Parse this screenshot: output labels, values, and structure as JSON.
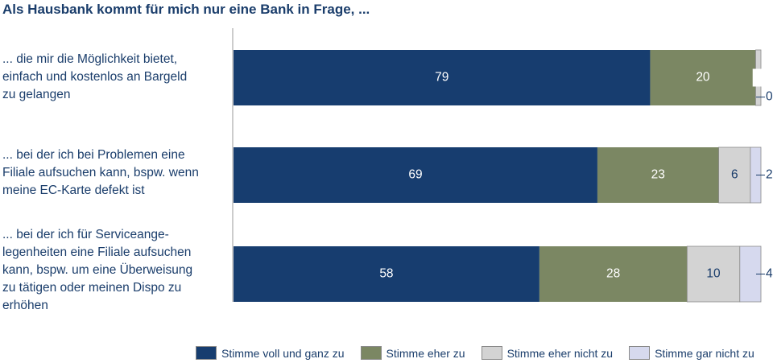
{
  "chart_data": {
    "type": "bar",
    "orientation": "horizontal",
    "stacked": true,
    "title": "Als Hausbank kommt für mich nur eine Bank in Frage, ...",
    "categories": [
      "... die mir die Möglichkeit bietet,\neinfach und kostenlos an Bargeld\nzu gelangen",
      "... bei der ich bei Problemen eine\nFiliale aufsuchen kann, bspw. wenn\nmeine EC-Karte defekt ist",
      "... bei der ich für Serviceange-\nlegenheiten eine Filiale aufsuchen\nkann, bspw. um eine Überweisung\nzu tätigen oder meinen Dispo zu\nerhöhen"
    ],
    "series": [
      {
        "name": "Stimme voll und ganz zu",
        "color": "#173d6f",
        "label_color": "#ffffff",
        "values": [
          79,
          69,
          58
        ]
      },
      {
        "name": "Stimme eher zu",
        "color": "#7b8763",
        "label_color": "#ffffff",
        "values": [
          20,
          23,
          28
        ]
      },
      {
        "name": "Stimme eher nicht zu",
        "color": "#d3d3d3",
        "label_color": "#1a3d6b",
        "values": [
          1,
          6,
          10
        ]
      },
      {
        "name": "Stimme gar nicht zu",
        "color": "#d6d9ee",
        "label_color": "#1a3d6b",
        "values": [
          0,
          2,
          4
        ]
      }
    ],
    "xlim": [
      0,
      100
    ],
    "legend_position": "bottom",
    "grid": false
  }
}
